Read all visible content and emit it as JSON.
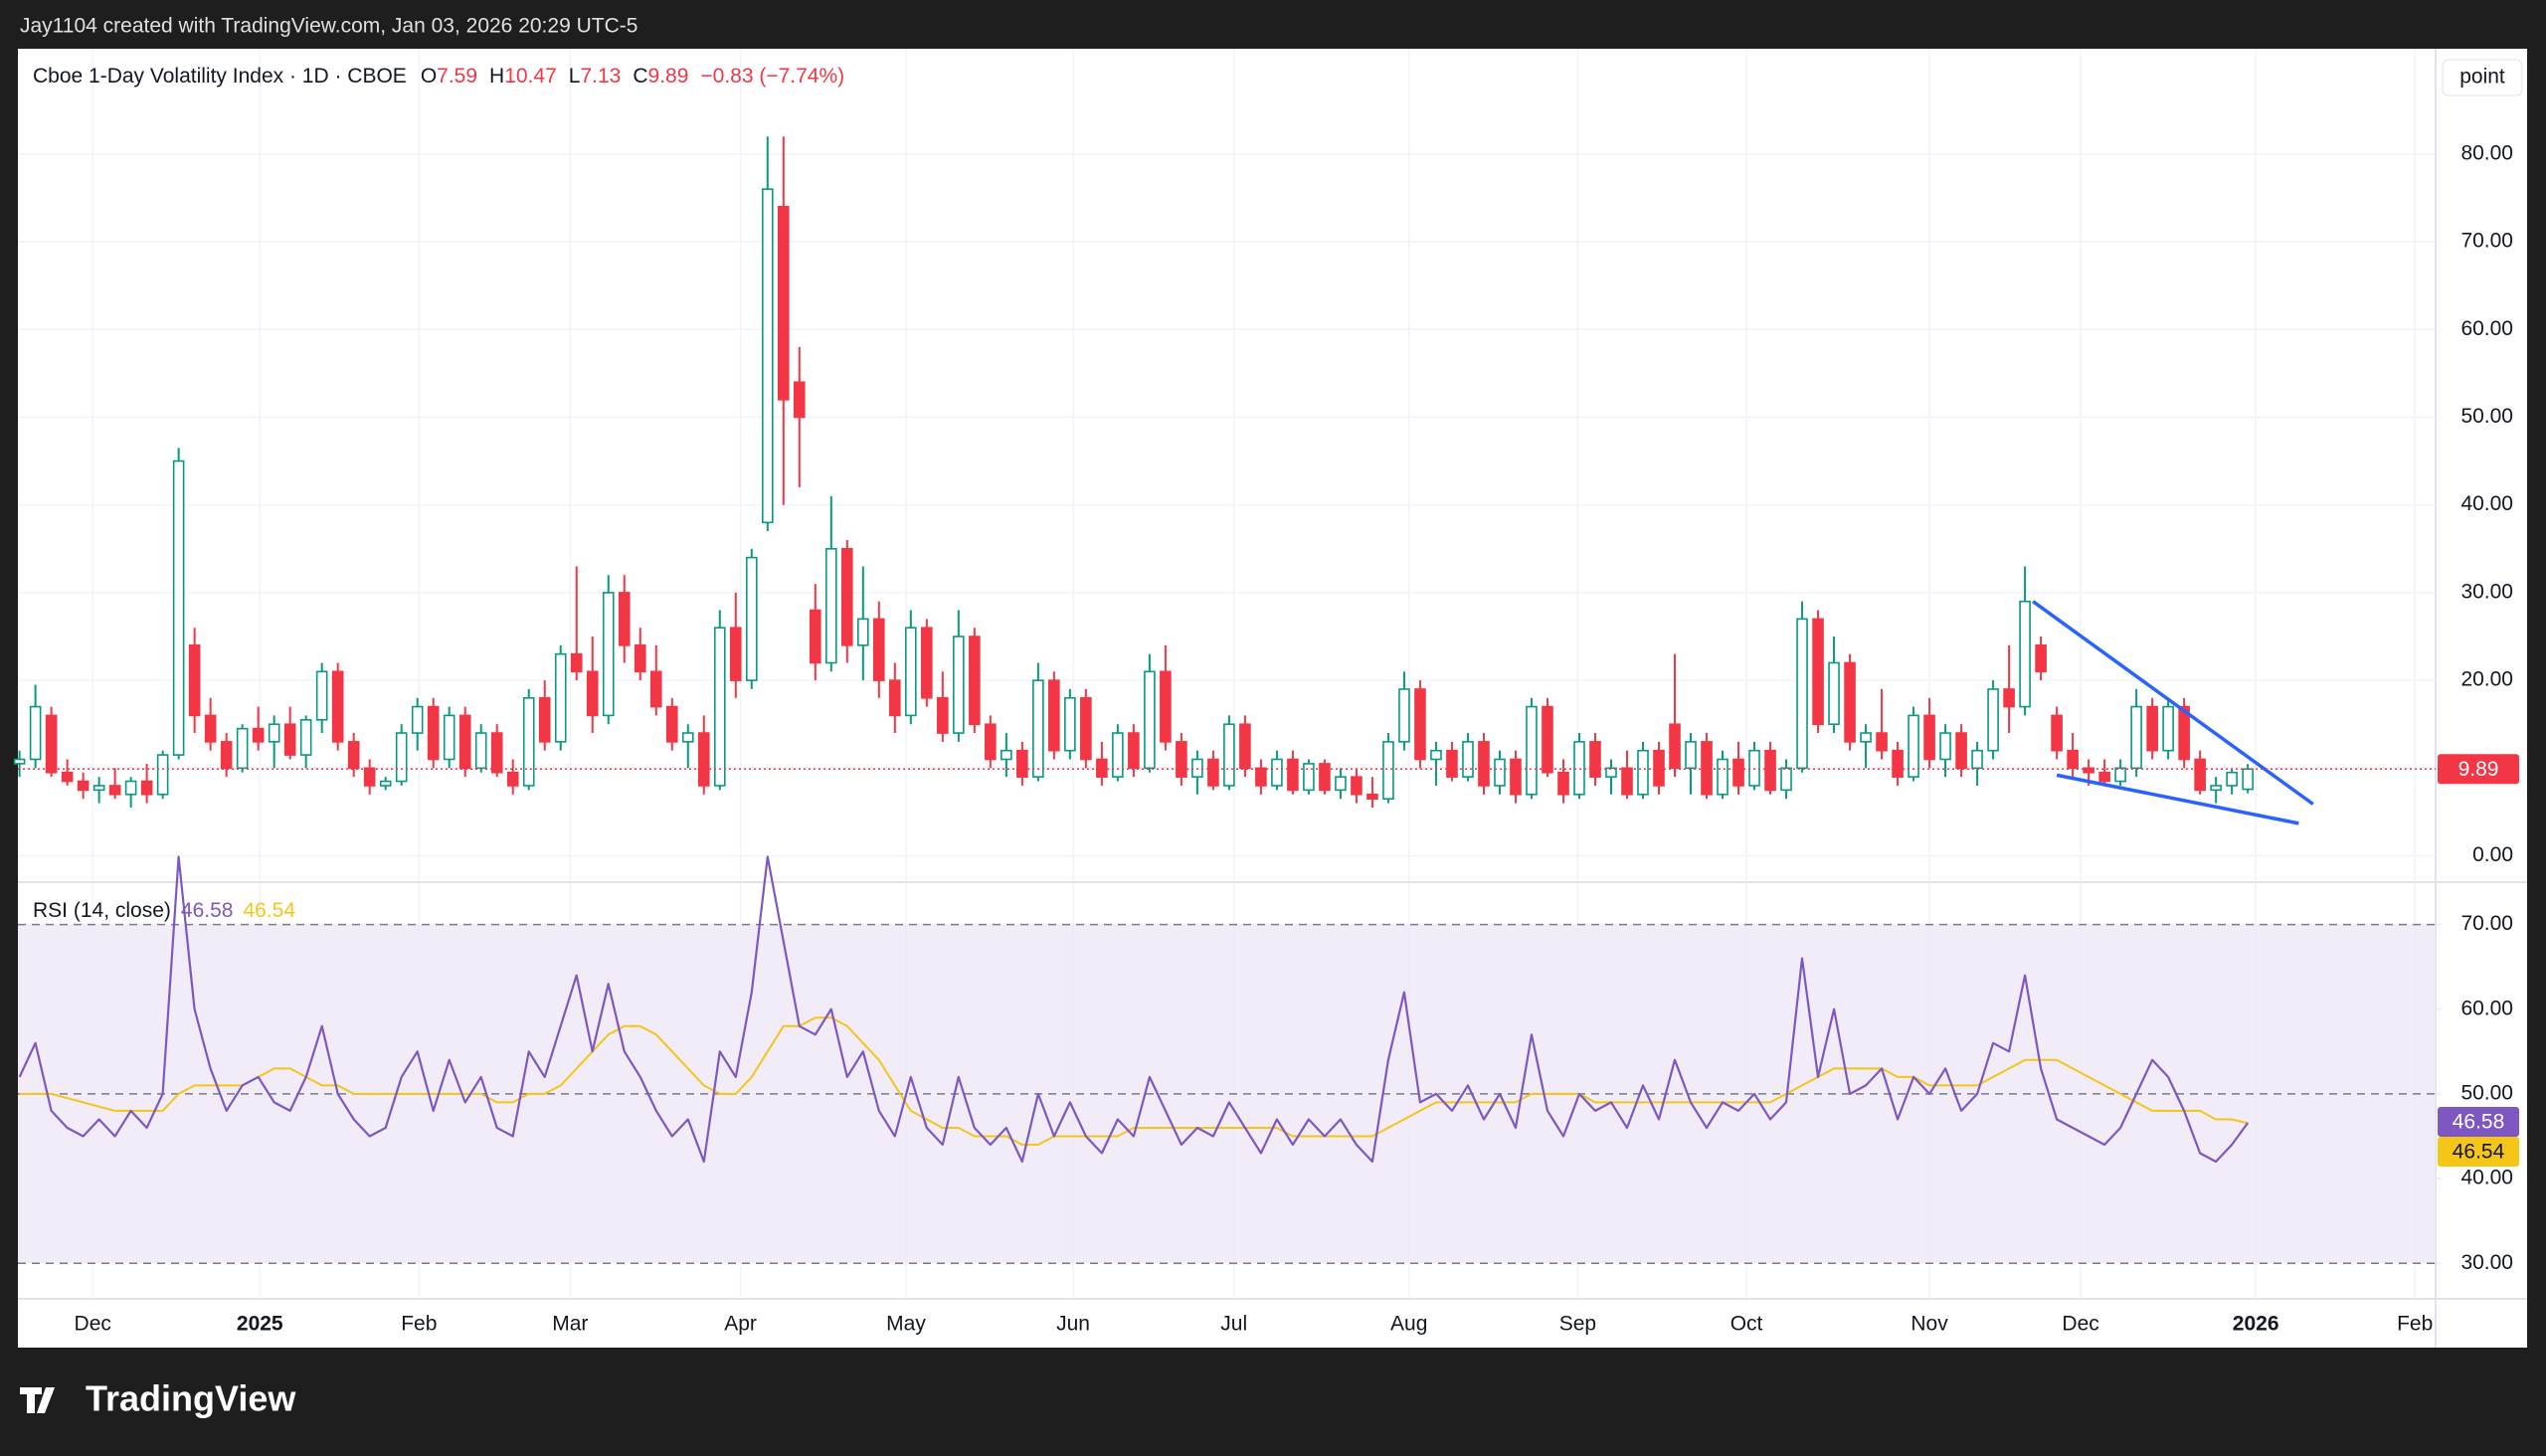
{
  "header": {
    "credit": "Jay1104 created with TradingView.com, Jan 03, 2026 20:29 UTC-5",
    "brand": "TradingView",
    "button": "point"
  },
  "chart_data": [
    {
      "type": "candlestick",
      "title": "Cboe 1-Day Volatility Index · 1D · CBOE",
      "ohlc_letters": [
        "O",
        "H",
        "L",
        "C"
      ],
      "change": "−0.83 (−7.74%)",
      "up_color": "#089981",
      "down_color": "#f23645",
      "grid": true,
      "last_price_line": true,
      "xlim": [
        -0.1,
        151.8
      ],
      "xticks": [
        {
          "value": 4.6,
          "label": "Dec"
        },
        {
          "value": 15.1,
          "label": "2025"
        },
        {
          "value": 25.1,
          "label": "Feb"
        },
        {
          "value": 34.6,
          "label": "Mar"
        },
        {
          "value": 45.3,
          "label": "Apr"
        },
        {
          "value": 55.7,
          "label": "May"
        },
        {
          "value": 66.2,
          "label": "Jun"
        },
        {
          "value": 76.3,
          "label": "Jul"
        },
        {
          "value": 87.3,
          "label": "Aug"
        },
        {
          "value": 97.9,
          "label": "Sep"
        },
        {
          "value": 108.5,
          "label": "Oct"
        },
        {
          "value": 120,
          "label": "Nov"
        },
        {
          "value": 129.5,
          "label": "Dec"
        },
        {
          "value": 140.5,
          "label": "2026"
        },
        {
          "value": 150.5,
          "label": "Feb"
        }
      ],
      "ylim": [
        -3,
        92
      ],
      "yticks": [
        {
          "value": 0,
          "label": "0.00"
        },
        {
          "value": 10,
          "label": "10.00"
        },
        {
          "value": 20,
          "label": "20.00"
        },
        {
          "value": 30,
          "label": "30.00"
        },
        {
          "value": 40,
          "label": "40.00"
        },
        {
          "value": 50,
          "label": "50.00"
        },
        {
          "value": 60,
          "label": "60.00"
        },
        {
          "value": 70,
          "label": "70.00"
        },
        {
          "value": 80,
          "label": "80.00"
        }
      ],
      "trendlines": [
        {
          "color": "#2962ff",
          "x": [
            126.5,
            144.1
          ],
          "y": [
            29.0,
            5.9
          ]
        },
        {
          "color": "#2962ff",
          "x": [
            128.0,
            143.2
          ],
          "y": [
            9.2,
            3.7
          ]
        }
      ],
      "candles": [
        [
          10.5,
          12,
          9,
          11
        ],
        [
          11,
          19.5,
          10,
          17
        ],
        [
          16,
          17,
          9,
          9.5
        ],
        [
          9.5,
          11,
          8,
          8.5
        ],
        [
          8.5,
          9.5,
          6.5,
          7.5
        ],
        [
          7.5,
          9,
          6,
          8
        ],
        [
          8,
          10,
          6.5,
          7
        ],
        [
          7,
          9,
          5.5,
          8.5
        ],
        [
          8.5,
          10.5,
          6,
          7
        ],
        [
          7,
          12,
          6.5,
          11.5
        ],
        [
          11.5,
          46.5,
          11,
          45
        ],
        [
          24,
          26,
          14,
          16
        ],
        [
          16,
          18,
          12,
          13
        ],
        [
          13,
          14,
          9,
          10
        ],
        [
          10,
          15,
          9.5,
          14.5
        ],
        [
          14.5,
          17,
          12,
          13
        ],
        [
          13,
          16,
          10,
          15
        ],
        [
          15,
          17,
          11,
          11.5
        ],
        [
          11.5,
          16,
          10,
          15.5
        ],
        [
          15.5,
          22,
          14,
          21
        ],
        [
          21,
          22,
          12,
          13
        ],
        [
          13,
          14,
          9,
          10
        ],
        [
          10,
          11,
          7,
          8
        ],
        [
          8,
          9,
          7.5,
          8.5
        ],
        [
          8.5,
          15,
          8,
          14
        ],
        [
          14,
          18,
          12,
          17
        ],
        [
          17,
          18,
          10,
          11
        ],
        [
          11,
          17,
          10,
          16
        ],
        [
          16,
          17,
          9,
          10
        ],
        [
          10,
          15,
          9.5,
          14
        ],
        [
          14,
          15,
          9,
          9.5
        ],
        [
          9.5,
          11,
          7,
          8
        ],
        [
          8,
          19,
          7.5,
          18
        ],
        [
          18,
          20,
          12,
          13
        ],
        [
          13,
          24,
          12,
          23
        ],
        [
          23,
          33,
          20,
          21
        ],
        [
          21,
          25,
          14,
          16
        ],
        [
          16,
          32,
          15,
          30
        ],
        [
          30,
          32,
          22,
          24
        ],
        [
          24,
          26,
          20,
          21
        ],
        [
          21,
          24,
          16,
          17
        ],
        [
          17,
          18,
          12,
          13
        ],
        [
          13,
          15,
          10,
          14
        ],
        [
          14,
          16,
          7,
          8
        ],
        [
          8,
          28,
          7.5,
          26
        ],
        [
          26,
          30,
          18,
          20
        ],
        [
          20,
          35,
          19,
          34
        ],
        [
          38,
          82,
          37,
          76
        ],
        [
          74,
          82,
          40,
          52
        ],
        [
          54,
          58,
          42,
          50
        ],
        [
          28,
          31,
          20,
          22
        ],
        [
          22,
          41,
          21,
          35
        ],
        [
          35,
          36,
          22,
          24
        ],
        [
          24,
          33,
          20,
          27
        ],
        [
          27,
          29,
          18,
          20
        ],
        [
          20,
          22,
          14,
          16
        ],
        [
          16,
          28,
          15,
          26
        ],
        [
          26,
          27,
          17,
          18
        ],
        [
          18,
          21,
          13,
          14
        ],
        [
          14,
          28,
          13,
          25
        ],
        [
          25,
          26,
          14,
          15
        ],
        [
          15,
          16,
          10,
          11
        ],
        [
          11,
          14,
          9,
          12
        ],
        [
          12,
          13,
          8,
          9
        ],
        [
          9,
          22,
          8.5,
          20
        ],
        [
          20,
          21,
          11,
          12
        ],
        [
          12,
          19,
          11,
          18
        ],
        [
          18,
          19,
          10,
          11
        ],
        [
          11,
          13,
          8,
          9
        ],
        [
          9,
          15,
          8.5,
          14
        ],
        [
          14,
          15,
          9,
          10
        ],
        [
          10,
          23,
          9.5,
          21
        ],
        [
          21,
          24,
          12,
          13
        ],
        [
          13,
          14,
          8,
          9
        ],
        [
          9,
          12,
          7,
          11
        ],
        [
          11,
          12,
          7.5,
          8
        ],
        [
          8,
          16,
          7.5,
          15
        ],
        [
          15,
          16,
          9,
          10
        ],
        [
          10,
          11,
          7,
          8
        ],
        [
          8,
          12,
          7.5,
          11
        ],
        [
          11,
          12,
          7,
          7.5
        ],
        [
          7.5,
          11,
          7,
          10.5
        ],
        [
          10.5,
          11,
          7,
          7.5
        ],
        [
          7.5,
          10,
          6.5,
          9
        ],
        [
          9,
          10,
          6,
          7
        ],
        [
          7,
          9,
          5.5,
          6.5
        ],
        [
          6.5,
          14,
          6,
          13
        ],
        [
          13,
          21,
          12,
          19
        ],
        [
          19,
          20,
          10,
          11
        ],
        [
          11,
          13,
          8,
          12
        ],
        [
          12,
          13,
          8.5,
          9
        ],
        [
          9,
          14,
          8.5,
          13
        ],
        [
          13,
          14,
          7,
          8
        ],
        [
          8,
          12,
          7,
          11
        ],
        [
          11,
          12,
          6,
          7
        ],
        [
          7,
          18,
          6.5,
          17
        ],
        [
          17,
          18,
          9,
          9.5
        ],
        [
          9.5,
          11,
          6,
          7
        ],
        [
          7,
          14,
          6.5,
          13
        ],
        [
          13,
          14,
          8,
          9
        ],
        [
          9,
          11,
          7,
          10
        ],
        [
          10,
          12,
          6.5,
          7
        ],
        [
          7,
          13,
          6.5,
          12
        ],
        [
          12,
          13,
          7,
          8
        ],
        [
          15,
          23,
          9,
          10
        ],
        [
          10,
          14,
          7,
          13
        ],
        [
          13,
          14,
          6.5,
          7
        ],
        [
          7,
          12,
          6.5,
          11
        ],
        [
          11,
          13,
          7,
          8
        ],
        [
          8,
          13,
          7.5,
          12
        ],
        [
          12,
          13,
          7,
          7.5
        ],
        [
          7.5,
          11,
          6.5,
          10
        ],
        [
          10,
          29,
          9.5,
          27
        ],
        [
          27,
          28,
          14,
          15
        ],
        [
          15,
          25,
          14,
          22
        ],
        [
          22,
          23,
          12,
          13
        ],
        [
          13,
          15,
          10,
          14
        ],
        [
          14,
          19,
          11,
          12
        ],
        [
          12,
          13,
          8,
          9
        ],
        [
          9,
          17,
          8.5,
          16
        ],
        [
          16,
          18,
          10,
          11
        ],
        [
          11,
          15,
          9,
          14
        ],
        [
          14,
          15,
          9,
          10
        ],
        [
          10,
          13,
          8,
          12
        ],
        [
          12,
          20,
          11,
          19
        ],
        [
          19,
          24,
          14,
          17
        ],
        [
          17,
          33,
          16,
          29
        ],
        [
          24,
          25,
          20,
          21
        ],
        [
          16,
          17,
          11,
          12
        ],
        [
          12,
          14,
          9,
          10
        ],
        [
          10,
          11,
          8,
          9.5
        ],
        [
          9.5,
          11,
          8,
          8.5
        ],
        [
          8.5,
          11,
          8,
          10
        ],
        [
          10,
          19,
          9,
          17
        ],
        [
          17,
          18,
          11,
          12
        ],
        [
          12,
          18,
          11,
          17
        ],
        [
          17,
          18,
          10,
          11
        ],
        [
          11,
          12,
          7,
          7.5
        ],
        [
          7.5,
          9,
          6,
          8
        ],
        [
          8,
          10,
          7,
          9.5
        ],
        [
          7.59,
          10.47,
          7.13,
          9.89
        ]
      ]
    },
    {
      "type": "line",
      "title": "RSI (14, close)",
      "ylim": [
        25.8,
        75
      ],
      "yticks": [
        {
          "value": 30,
          "label": "30.00"
        },
        {
          "value": 40,
          "label": "40.00"
        },
        {
          "value": 50,
          "label": "50.00"
        },
        {
          "value": 60,
          "label": "60.00"
        },
        {
          "value": 70,
          "label": "70.00"
        }
      ],
      "levels": [
        30,
        50,
        70
      ],
      "band_color": "#ede7f6",
      "series": [
        {
          "color": "#7e57c2",
          "values": [
            52,
            56,
            48,
            46,
            45,
            47,
            45,
            48,
            46,
            50,
            78,
            60,
            53,
            48,
            51,
            52,
            49,
            48,
            52,
            58,
            50,
            47,
            45,
            46,
            52,
            55,
            48,
            54,
            49,
            52,
            46,
            45,
            55,
            52,
            58,
            64,
            55,
            63,
            55,
            52,
            48,
            45,
            47,
            42,
            55,
            52,
            62,
            78,
            68,
            58,
            57,
            60,
            52,
            55,
            48,
            45,
            52,
            46,
            44,
            52,
            46,
            44,
            46,
            42,
            50,
            45,
            49,
            45,
            43,
            47,
            45,
            52,
            48,
            44,
            46,
            45,
            49,
            46,
            43,
            47,
            44,
            47,
            45,
            47,
            44,
            42,
            54,
            62,
            49,
            50,
            48,
            51,
            47,
            50,
            46,
            57,
            48,
            45,
            50,
            48,
            49,
            46,
            51,
            47,
            54,
            49,
            46,
            49,
            48,
            50,
            47,
            49,
            66,
            52,
            60,
            50,
            51,
            53,
            47,
            52,
            50,
            53,
            48,
            50,
            56,
            55,
            64,
            53,
            47,
            46,
            45,
            44,
            46,
            50,
            54,
            52,
            48,
            43,
            42,
            44,
            46.58
          ]
        },
        {
          "color": "#f5c518",
          "values": [
            50,
            50,
            50,
            49.5,
            49,
            48.5,
            48,
            48,
            48,
            48,
            50,
            51,
            51,
            51,
            51,
            52,
            53,
            53,
            52,
            51,
            51,
            50,
            50,
            50,
            50,
            50,
            50,
            50,
            50,
            50,
            49,
            49,
            50,
            50,
            51,
            53,
            55,
            57,
            58,
            58,
            57,
            55,
            53,
            51,
            50,
            50,
            52,
            55,
            58,
            58,
            59,
            59,
            58,
            56,
            54,
            51,
            48,
            47,
            46,
            46,
            45,
            45,
            45,
            44,
            44,
            45,
            45,
            45,
            45,
            45,
            46,
            46,
            46,
            46,
            46,
            46,
            46,
            46,
            46,
            46,
            45,
            45,
            45,
            45,
            45,
            45,
            46,
            47,
            48,
            49,
            49,
            49,
            49,
            49,
            49,
            50,
            50,
            50,
            50,
            49,
            49,
            49,
            49,
            49,
            49,
            49,
            49,
            49,
            49,
            49,
            49,
            50,
            51,
            52,
            53,
            53,
            53,
            53,
            52,
            52,
            51,
            51,
            51,
            51,
            52,
            53,
            54,
            54,
            54,
            53,
            52,
            51,
            50,
            49,
            48,
            48,
            48,
            48,
            47,
            47,
            46.54
          ]
        }
      ]
    }
  ]
}
